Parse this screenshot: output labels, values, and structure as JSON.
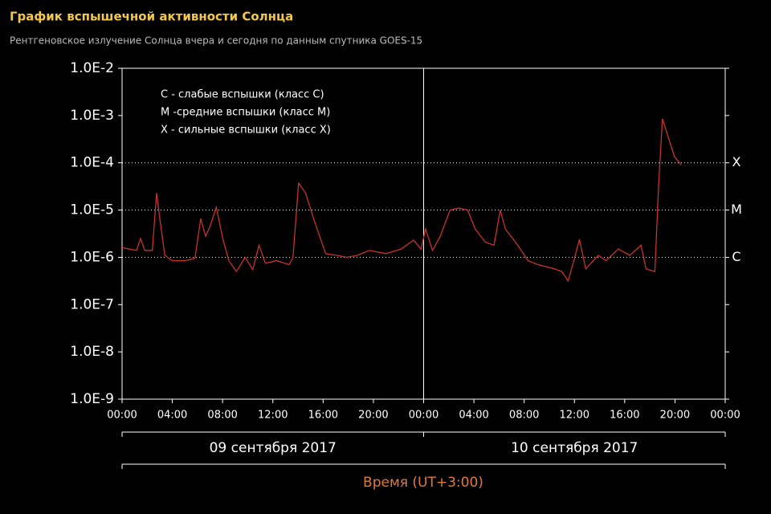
{
  "chart_data": {
    "type": "line",
    "title": "График вспышечной активности Солнца",
    "subtitle": "Рентгеновское излучение Солнца вчера и сегодня по данным спутника GOES-15",
    "xlabel": "Время (UT+3:00)",
    "log_y": true,
    "legend_text": [
      "C - слабые вспышки (класс C)",
      "M -средние вспышки (класс M)",
      "X - сильные вспышки (класс X)"
    ],
    "class_lines": [
      {
        "value": 0.0001,
        "label": "X"
      },
      {
        "value": 1e-05,
        "label": "M"
      },
      {
        "value": 1e-06,
        "label": "C"
      }
    ],
    "x_groups": [
      {
        "label": "09 сентября 2017",
        "range": [
          0,
          24
        ]
      },
      {
        "label": "10 сентября 2017",
        "range": [
          24,
          48
        ]
      }
    ],
    "separators": [
      24
    ],
    "xlim": [
      0,
      48
    ],
    "xticks": [
      {
        "value": 0,
        "label": "00:00"
      },
      {
        "value": 4,
        "label": "04:00"
      },
      {
        "value": 8,
        "label": "08:00"
      },
      {
        "value": 12,
        "label": "12:00"
      },
      {
        "value": 16,
        "label": "16:00"
      },
      {
        "value": 20,
        "label": "20:00"
      },
      {
        "value": 24,
        "label": "00:00"
      },
      {
        "value": 28,
        "label": "04:00"
      },
      {
        "value": 32,
        "label": "08:00"
      },
      {
        "value": 36,
        "label": "12:00"
      },
      {
        "value": 40,
        "label": "16:00"
      },
      {
        "value": 44,
        "label": "20:00"
      },
      {
        "value": 48,
        "label": "00:00"
      }
    ],
    "ylim": [
      1e-09,
      0.01
    ],
    "yticks": [
      {
        "value": 1e-09,
        "label": "1.0E-9"
      },
      {
        "value": 1e-08,
        "label": "1.0E-8"
      },
      {
        "value": 1e-07,
        "label": "1.0E-7"
      },
      {
        "value": 1e-06,
        "label": "1.0E-6"
      },
      {
        "value": 1e-05,
        "label": "1.0E-5"
      },
      {
        "value": 0.0001,
        "label": "1.0E-4"
      },
      {
        "value": 0.001,
        "label": "1.0E-3"
      },
      {
        "value": 0.01,
        "label": "1.0E-2"
      }
    ],
    "series": [
      {
        "color": "#c8322c",
        "x": [
          0,
          1.15,
          1.47,
          1.8,
          2.4,
          2.75,
          3.07,
          3.4,
          4.0,
          5.0,
          5.8,
          6.26,
          6.65,
          7.0,
          7.5,
          8.05,
          8.5,
          9.1,
          9.8,
          10.4,
          10.9,
          11.4,
          12.3,
          13.3,
          13.6,
          14.05,
          14.6,
          15.3,
          16.2,
          17.1,
          17.9,
          18.7,
          19.7,
          21.0,
          22.2,
          23.2,
          23.8,
          24.15,
          24.7,
          25.3,
          26.1,
          26.8,
          27.5,
          28.1,
          28.9,
          29.6,
          30.1,
          30.5,
          31.5,
          32.3,
          33.1,
          34.4,
          35.0,
          35.5,
          36.0,
          36.4,
          36.9,
          37.9,
          38.5,
          39.5,
          40.4,
          41.3,
          41.7,
          42.4,
          42.7,
          43.0,
          43.45,
          43.96,
          44.5
        ],
        "values": [
          1.6e-06,
          1.4e-06,
          2.5e-06,
          1.4e-06,
          1.4e-06,
          2.3e-05,
          4.9e-06,
          1.1e-06,
          8.5e-07,
          8.5e-07,
          9.5e-07,
          6.6e-06,
          2.8e-06,
          4.5e-06,
          1.15e-05,
          2.3e-06,
          8.5e-07,
          5e-07,
          1e-06,
          5.5e-07,
          1.8e-06,
          7.5e-07,
          8.5e-07,
          7e-07,
          1e-06,
          3.7e-05,
          2.3e-05,
          5.9e-06,
          1.2e-06,
          1.1e-06,
          1e-06,
          1.1e-06,
          1.4e-06,
          1.2e-06,
          1.5e-06,
          2.3e-06,
          1.5e-06,
          4e-06,
          1.4e-06,
          2.7e-06,
          1e-05,
          1.1e-05,
          1e-05,
          4e-06,
          2.1e-06,
          1.8e-06,
          1e-05,
          4e-06,
          1.8e-06,
          8.5e-07,
          7e-07,
          5.7e-07,
          5e-07,
          3.2e-07,
          9.5e-07,
          2.4e-06,
          5.7e-07,
          1.1e-06,
          8.5e-07,
          1.5e-06,
          1.1e-06,
          1.8e-06,
          5.7e-07,
          5e-07,
          3.5e-05,
          0.00085,
          0.00036,
          0.000135,
          9e-05
        ]
      }
    ]
  }
}
